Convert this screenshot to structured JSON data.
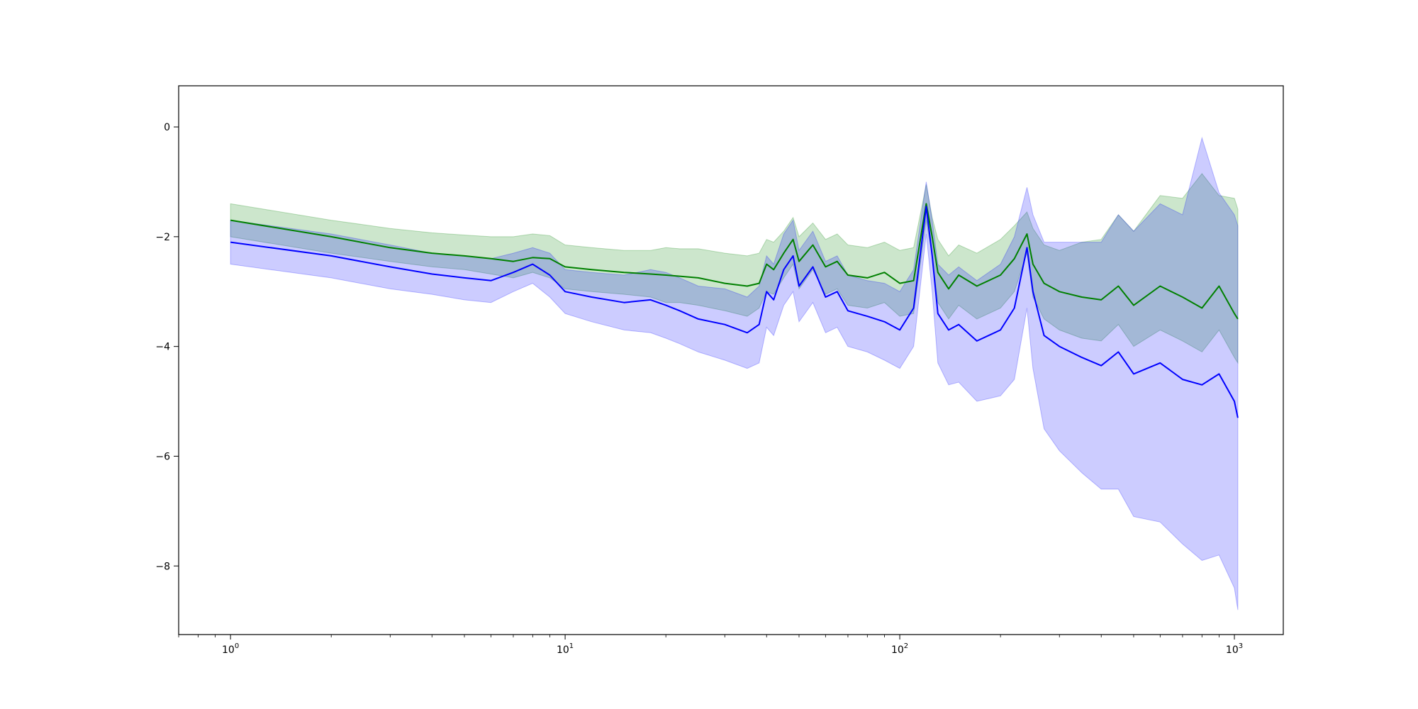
{
  "chart_data": {
    "type": "line",
    "title": "",
    "xlabel": "",
    "ylabel": "",
    "xscale": "log",
    "xlim": [
      0.7,
      1400
    ],
    "ylim": [
      -9.25,
      0.75
    ],
    "grid": false,
    "legend": "none",
    "x_ticks": [
      {
        "value": 1,
        "base": "10",
        "exp": "0"
      },
      {
        "value": 10,
        "base": "10",
        "exp": "1"
      },
      {
        "value": 100,
        "base": "10",
        "exp": "2"
      },
      {
        "value": 1000,
        "base": "10",
        "exp": "3"
      }
    ],
    "y_ticks": [
      {
        "value": 0,
        "label": "0"
      },
      {
        "value": -2,
        "label": "−2"
      },
      {
        "value": -4,
        "label": "−4"
      },
      {
        "value": -6,
        "label": "−6"
      },
      {
        "value": -8,
        "label": "−8"
      }
    ],
    "series": [
      {
        "color": "#008000",
        "band_color": "#008000",
        "band_opacity": 0.2,
        "x": [
          1,
          2,
          3,
          4,
          5,
          6,
          7,
          8,
          9,
          10,
          12,
          15,
          18,
          20,
          22,
          25,
          30,
          35,
          38,
          40,
          42,
          45,
          48,
          50,
          55,
          60,
          65,
          70,
          80,
          90,
          100,
          110,
          120,
          125,
          130,
          140,
          150,
          170,
          200,
          220,
          240,
          250,
          270,
          300,
          350,
          400,
          450,
          500,
          600,
          700,
          800,
          900,
          1000,
          1024
        ],
        "y": [
          -1.7,
          -2.0,
          -2.2,
          -2.3,
          -2.35,
          -2.4,
          -2.45,
          -2.38,
          -2.4,
          -2.55,
          -2.6,
          -2.65,
          -2.68,
          -2.7,
          -2.72,
          -2.75,
          -2.85,
          -2.9,
          -2.85,
          -2.5,
          -2.6,
          -2.3,
          -2.05,
          -2.45,
          -2.15,
          -2.55,
          -2.45,
          -2.7,
          -2.75,
          -2.65,
          -2.85,
          -2.8,
          -1.4,
          -2.0,
          -2.65,
          -2.95,
          -2.7,
          -2.9,
          -2.7,
          -2.4,
          -1.95,
          -2.5,
          -2.85,
          -3.0,
          -3.1,
          -3.15,
          -2.9,
          -3.25,
          -2.9,
          -3.1,
          -3.3,
          -2.9,
          -3.4,
          -3.5
        ],
        "lower": [
          -2.0,
          -2.3,
          -2.45,
          -2.55,
          -2.6,
          -2.68,
          -2.75,
          -2.65,
          -2.75,
          -2.95,
          -3.0,
          -3.05,
          -3.1,
          -3.2,
          -3.2,
          -3.25,
          -3.35,
          -3.45,
          -3.3,
          -3.0,
          -3.05,
          -2.75,
          -2.5,
          -2.95,
          -2.6,
          -3.05,
          -2.95,
          -3.25,
          -3.3,
          -3.2,
          -3.45,
          -3.4,
          -1.7,
          -2.35,
          -3.2,
          -3.5,
          -3.25,
          -3.5,
          -3.3,
          -3.0,
          -2.3,
          -3.1,
          -3.5,
          -3.7,
          -3.85,
          -3.9,
          -3.6,
          -4.0,
          -3.7,
          -3.9,
          -4.1,
          -3.7,
          -4.2,
          -4.3
        ],
        "upper": [
          -1.4,
          -1.7,
          -1.85,
          -1.93,
          -1.97,
          -2.0,
          -2.0,
          -1.95,
          -1.98,
          -2.15,
          -2.2,
          -2.25,
          -2.25,
          -2.2,
          -2.22,
          -2.22,
          -2.3,
          -2.35,
          -2.3,
          -2.05,
          -2.1,
          -1.9,
          -1.65,
          -2.0,
          -1.75,
          -2.05,
          -1.95,
          -2.15,
          -2.2,
          -2.1,
          -2.25,
          -2.2,
          -1.05,
          -1.65,
          -2.05,
          -2.35,
          -2.15,
          -2.3,
          -2.05,
          -1.8,
          -1.55,
          -1.85,
          -2.15,
          -2.25,
          -2.1,
          -2.05,
          -1.6,
          -1.9,
          -1.25,
          -1.3,
          -0.85,
          -1.25,
          -1.3,
          -1.5
        ]
      },
      {
        "color": "#0000ff",
        "band_color": "#0000ff",
        "band_opacity": 0.2,
        "x": [
          1,
          2,
          3,
          4,
          5,
          6,
          7,
          8,
          9,
          10,
          12,
          15,
          18,
          20,
          22,
          25,
          30,
          35,
          38,
          40,
          42,
          45,
          48,
          50,
          55,
          60,
          65,
          70,
          80,
          90,
          100,
          110,
          120,
          125,
          130,
          140,
          150,
          170,
          200,
          220,
          240,
          250,
          270,
          300,
          350,
          400,
          450,
          500,
          600,
          700,
          800,
          900,
          1000,
          1024
        ],
        "y": [
          -2.1,
          -2.35,
          -2.55,
          -2.68,
          -2.75,
          -2.8,
          -2.65,
          -2.5,
          -2.7,
          -3.0,
          -3.1,
          -3.2,
          -3.15,
          -3.25,
          -3.35,
          -3.5,
          -3.6,
          -3.75,
          -3.6,
          -3.0,
          -3.15,
          -2.6,
          -2.35,
          -2.9,
          -2.55,
          -3.1,
          -3.0,
          -3.35,
          -3.45,
          -3.55,
          -3.7,
          -3.3,
          -1.45,
          -2.35,
          -3.4,
          -3.7,
          -3.6,
          -3.9,
          -3.7,
          -3.3,
          -2.2,
          -3.0,
          -3.8,
          -4.0,
          -4.2,
          -4.35,
          -4.1,
          -4.5,
          -4.3,
          -4.6,
          -4.7,
          -4.5,
          -5.0,
          -5.3
        ],
        "lower": [
          -2.5,
          -2.75,
          -2.95,
          -3.05,
          -3.15,
          -3.2,
          -3.0,
          -2.85,
          -3.1,
          -3.4,
          -3.55,
          -3.7,
          -3.75,
          -3.85,
          -3.95,
          -4.1,
          -4.25,
          -4.4,
          -4.3,
          -3.65,
          -3.8,
          -3.25,
          -3.0,
          -3.55,
          -3.2,
          -3.75,
          -3.65,
          -4.0,
          -4.1,
          -4.25,
          -4.4,
          -4.0,
          -1.95,
          -3.0,
          -4.3,
          -4.7,
          -4.65,
          -5.0,
          -4.9,
          -4.6,
          -3.3,
          -4.4,
          -5.5,
          -5.9,
          -6.3,
          -6.6,
          -6.6,
          -7.1,
          -7.2,
          -7.6,
          -7.9,
          -7.8,
          -8.4,
          -8.8
        ],
        "upper": [
          -1.7,
          -1.95,
          -2.15,
          -2.3,
          -2.35,
          -2.4,
          -2.3,
          -2.2,
          -2.3,
          -2.6,
          -2.65,
          -2.7,
          -2.6,
          -2.65,
          -2.75,
          -2.9,
          -2.95,
          -3.1,
          -2.9,
          -2.35,
          -2.5,
          -1.95,
          -1.7,
          -2.25,
          -1.9,
          -2.45,
          -2.35,
          -2.7,
          -2.8,
          -2.85,
          -3.0,
          -2.6,
          -1.0,
          -1.7,
          -2.5,
          -2.7,
          -2.55,
          -2.8,
          -2.5,
          -2.0,
          -1.1,
          -1.6,
          -2.1,
          -2.1,
          -2.1,
          -2.1,
          -1.6,
          -1.9,
          -1.4,
          -1.6,
          -0.2,
          -1.2,
          -1.6,
          -1.8
        ]
      }
    ]
  }
}
